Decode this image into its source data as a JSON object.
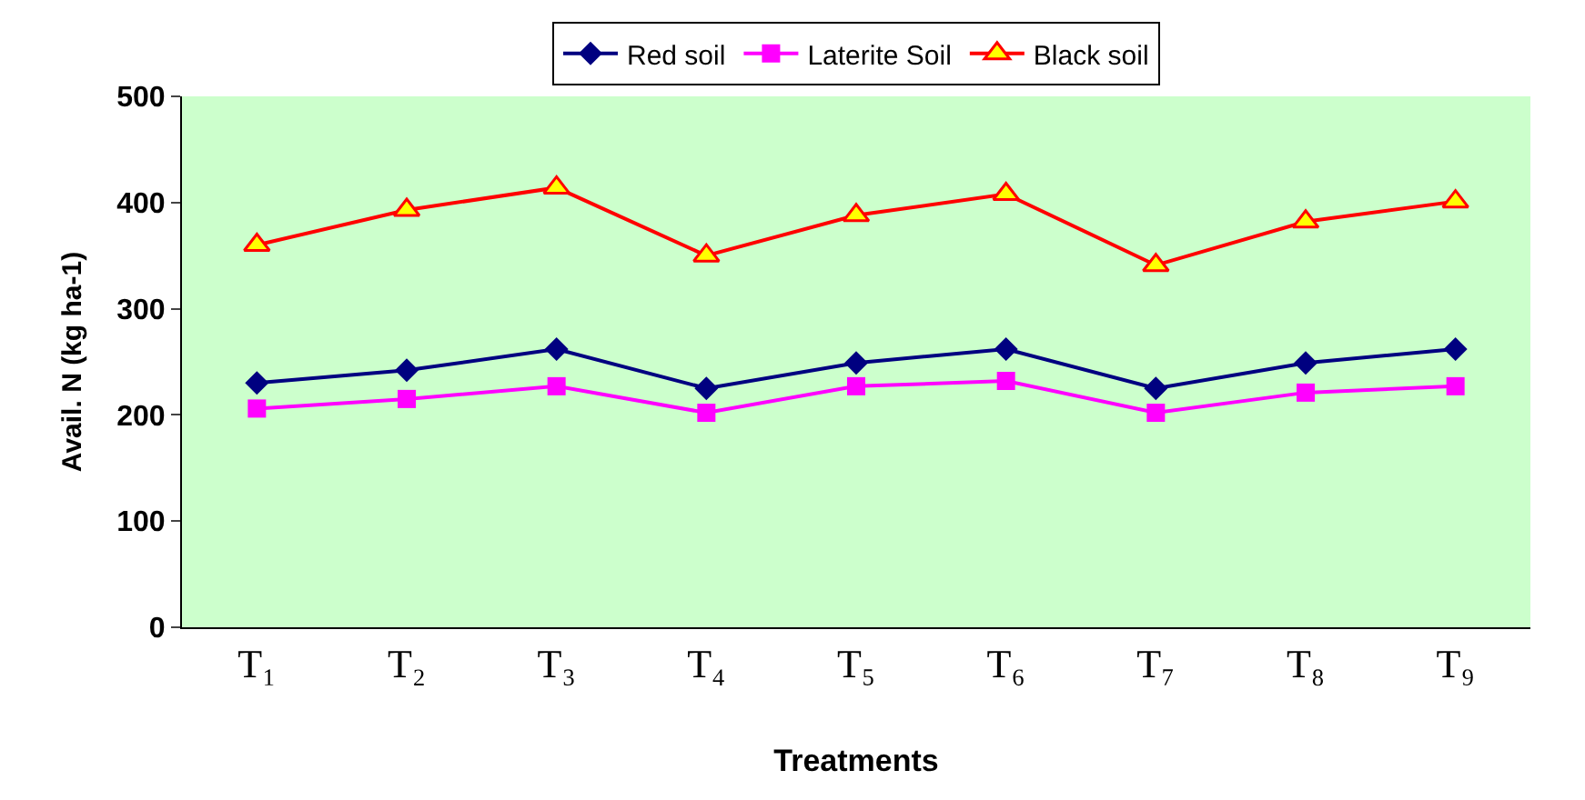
{
  "chart_data": {
    "type": "line",
    "xlabel": "Treatments",
    "ylabel": "Avail. N (kg ha-1)",
    "categories": [
      "T₁",
      "T₂",
      "T₃",
      "T₄",
      "T₅",
      "T₆",
      "T₇",
      "T₈",
      "T₉"
    ],
    "series": [
      {
        "name": "Red soil",
        "color": "#000080",
        "marker": "diamond",
        "values": [
          230,
          242,
          262,
          225,
          249,
          262,
          225,
          249,
          262
        ]
      },
      {
        "name": "Laterite Soil",
        "color": "#ff00ff",
        "marker": "square",
        "values": [
          206,
          215,
          227,
          202,
          227,
          232,
          202,
          221,
          227
        ]
      },
      {
        "name": "Black soil",
        "color": "#ff0000",
        "marker": "triangle",
        "values": [
          360,
          393,
          414,
          350,
          388,
          408,
          341,
          382,
          401
        ]
      }
    ],
    "ylim": [
      0,
      500
    ],
    "yticks": [
      0,
      100,
      200,
      300,
      400,
      500
    ],
    "grid": false,
    "legend": "top",
    "line_style": "solid"
  }
}
